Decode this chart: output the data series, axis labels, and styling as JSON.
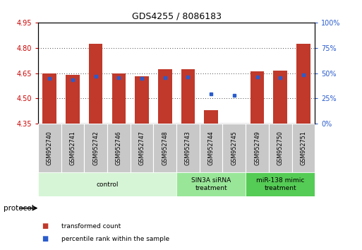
{
  "title": "GDS4255 / 8086183",
  "samples": [
    "GSM952740",
    "GSM952741",
    "GSM952742",
    "GSM952746",
    "GSM952747",
    "GSM952748",
    "GSM952743",
    "GSM952744",
    "GSM952745",
    "GSM952749",
    "GSM952750",
    "GSM952751"
  ],
  "bar_tops": [
    4.648,
    4.638,
    4.825,
    4.648,
    4.63,
    4.672,
    4.672,
    4.432,
    4.352,
    4.66,
    4.665,
    4.825
  ],
  "bar_bottoms": [
    4.35,
    4.35,
    4.35,
    4.35,
    4.35,
    4.35,
    4.35,
    4.35,
    4.35,
    4.35,
    4.35,
    4.35
  ],
  "blue_y": [
    4.618,
    4.61,
    4.632,
    4.624,
    4.618,
    4.624,
    4.628,
    4.528,
    4.52,
    4.628,
    4.625,
    4.638
  ],
  "ylim_left": [
    4.35,
    4.95
  ],
  "yticks_left": [
    4.35,
    4.5,
    4.65,
    4.8,
    4.95
  ],
  "ylim_right": [
    0,
    100
  ],
  "yticks_right": [
    0,
    25,
    50,
    75,
    100
  ],
  "bar_color": "#c0392b",
  "blue_color": "#2a5ccc",
  "groups": [
    {
      "label": "control",
      "start": 0,
      "end": 5,
      "color": "#d6f5d6"
    },
    {
      "label": "SIN3A siRNA\ntreatment",
      "start": 6,
      "end": 8,
      "color": "#99e699"
    },
    {
      "label": "miR-138 mimic\ntreatment",
      "start": 9,
      "end": 11,
      "color": "#55cc55"
    }
  ],
  "protocol_label": "protocol",
  "legend_items": [
    {
      "label": "transformed count",
      "color": "#c0392b"
    },
    {
      "label": "percentile rank within the sample",
      "color": "#2a5ccc"
    }
  ],
  "bg_color": "#ffffff"
}
